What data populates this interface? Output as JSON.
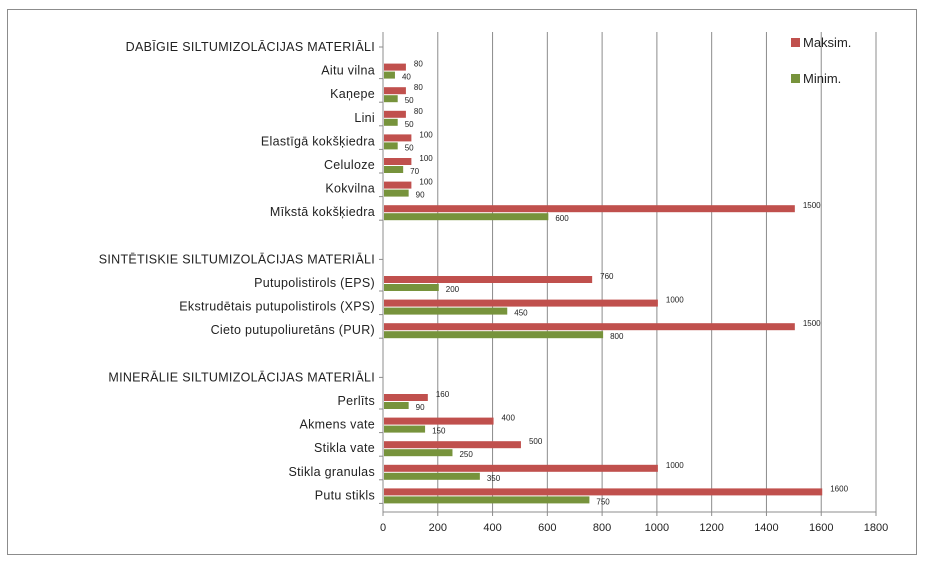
{
  "chart_data": {
    "type": "bar",
    "orientation": "horizontal",
    "xlim": [
      0,
      1800
    ],
    "x_ticks": [
      "0",
      "200",
      "400",
      "600",
      "800",
      "1000",
      "1200",
      "1400",
      "1600",
      "1800"
    ],
    "grid": true,
    "legend_position": "top-right",
    "series": [
      {
        "name": "Maksim.",
        "color": "#c0504d"
      },
      {
        "name": "Minim.",
        "color": "#77933c"
      }
    ],
    "groups": [
      {
        "title": "DABĪGIE SILTUMIZOLĀCIJAS MATERIĀLI",
        "items": [
          {
            "label": "Aitu vilna",
            "max": 80,
            "min": 40
          },
          {
            "label": "Kaņepe",
            "max": 80,
            "min": 50
          },
          {
            "label": "Lini",
            "max": 80,
            "min": 50
          },
          {
            "label": "Elastīgā kokšķiedra",
            "max": 100,
            "min": 50
          },
          {
            "label": "Celuloze",
            "max": 100,
            "min": 70
          },
          {
            "label": "Kokvilna",
            "max": 100,
            "min": 90
          },
          {
            "label": "Mīkstā kokšķiedra",
            "max": 1500,
            "min": 600
          }
        ]
      },
      {
        "title": "SINTĒTISKIE SILTUMIZOLĀCIJAS MATERIĀLI",
        "items": [
          {
            "label": "Putupolistirols (EPS)",
            "max": 760,
            "min": 200
          },
          {
            "label": "Ekstrudētais putupolistirols (XPS)",
            "max": 1000,
            "min": 450
          },
          {
            "label": "Cieto putupoliuretāns (PUR)",
            "max": 1500,
            "min": 800
          }
        ]
      },
      {
        "title": "MINERĀLIE SILTUMIZOLĀCIJAS MATERIĀLI",
        "items": [
          {
            "label": "Perlīts",
            "max": 160,
            "min": 90
          },
          {
            "label": "Akmens vate",
            "max": 400,
            "min": 150
          },
          {
            "label": "Stikla vate",
            "max": 500,
            "min": 250
          },
          {
            "label": "Stikla granulas",
            "max": 1000,
            "min": 350
          },
          {
            "label": "Putu stikls",
            "max": 1600,
            "min": 750
          }
        ]
      }
    ]
  }
}
